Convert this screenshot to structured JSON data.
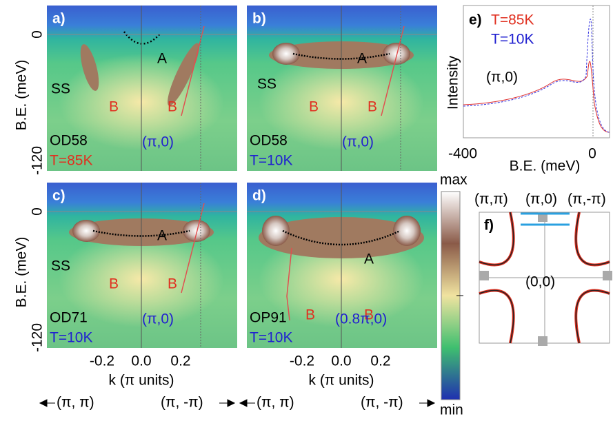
{
  "panels": [
    {
      "label": "a)",
      "band": "A",
      "surface": "SS",
      "branches": [
        "B",
        "B"
      ],
      "sample": "OD58",
      "temperature": "T=85K",
      "momentum": "(π,0)"
    },
    {
      "label": "b)",
      "band": "A",
      "surface": "SS",
      "branches": [
        "B",
        "B"
      ],
      "sample": "OD58",
      "temperature": "T=10K",
      "momentum": "(π,0)"
    },
    {
      "label": "c)",
      "band": "A",
      "surface": "SS",
      "branches": [
        "B",
        "B"
      ],
      "sample": "OD71",
      "temperature": "T=10K",
      "momentum": "(π,0)"
    },
    {
      "label": "d)",
      "band": "A",
      "branches": [
        "B",
        "B"
      ],
      "sample": "OP91",
      "temperature": "T=10K",
      "momentum": "(0.8π,0)"
    }
  ],
  "axes": {
    "y_label": "B.E. (meV)",
    "y_ticks": [
      "0",
      "-120"
    ],
    "x_label": "k (π units)",
    "x_ticks": [
      "-0.2",
      "0.0",
      "0.2"
    ],
    "directions": [
      "(π, π)",
      "(π, -π)"
    ]
  },
  "colorbar": {
    "max": "max",
    "min": "min"
  },
  "panel_e": {
    "label": "e)",
    "legend": [
      "T=85K",
      "T=10K"
    ],
    "y_label": "Intensity",
    "x_label": "B.E. (meV)",
    "x_ticks": [
      "-400",
      "0"
    ],
    "momentum": "(π,0)"
  },
  "panel_f": {
    "label": "f)",
    "corners": [
      "(π,π)",
      "(π,0)",
      "(π,-π)"
    ],
    "center": "(0,0)"
  }
}
